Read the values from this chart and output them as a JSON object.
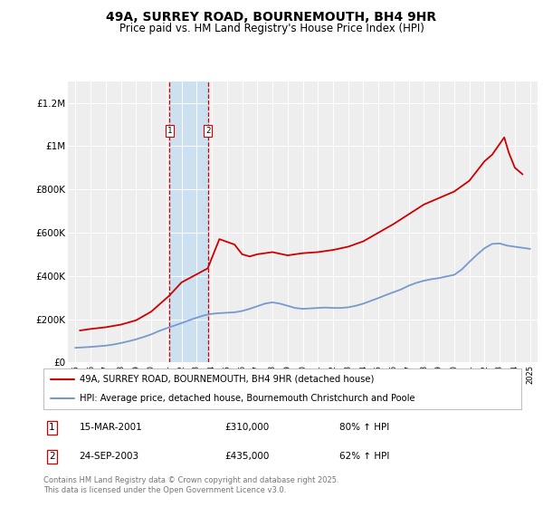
{
  "title": "49A, SURREY ROAD, BOURNEMOUTH, BH4 9HR",
  "subtitle": "Price paid vs. HM Land Registry's House Price Index (HPI)",
  "legend_line1": "49A, SURREY ROAD, BOURNEMOUTH, BH4 9HR (detached house)",
  "legend_line2": "HPI: Average price, detached house, Bournemouth Christchurch and Poole",
  "footer": "Contains HM Land Registry data © Crown copyright and database right 2025.\nThis data is licensed under the Open Government Licence v3.0.",
  "transaction1_date": "15-MAR-2001",
  "transaction1_price": "£310,000",
  "transaction1_hpi": "80% ↑ HPI",
  "transaction2_date": "24-SEP-2003",
  "transaction2_price": "£435,000",
  "transaction2_hpi": "62% ↑ HPI",
  "ylim": [
    0,
    1300000
  ],
  "yticks": [
    0,
    200000,
    400000,
    600000,
    800000,
    1000000,
    1200000
  ],
  "ytick_labels": [
    "£0",
    "£200K",
    "£400K",
    "£600K",
    "£800K",
    "£1M",
    "£1.2M"
  ],
  "background_color": "#ffffff",
  "plot_bg_color": "#eeeeee",
  "red_line_color": "#cc0000",
  "blue_line_color": "#7799cc",
  "shade_color": "#cce0f0",
  "vline_color": "#cc0000",
  "transaction1_x": 2001.21,
  "transaction2_x": 2003.73,
  "hpi_x": [
    1995,
    1995.5,
    1996,
    1996.5,
    1997,
    1997.5,
    1998,
    1998.5,
    1999,
    1999.5,
    2000,
    2000.5,
    2001,
    2001.5,
    2002,
    2002.5,
    2003,
    2003.5,
    2004,
    2004.5,
    2005,
    2005.5,
    2006,
    2006.5,
    2007,
    2007.5,
    2008,
    2008.5,
    2009,
    2009.5,
    2010,
    2010.5,
    2011,
    2011.5,
    2012,
    2012.5,
    2013,
    2013.5,
    2014,
    2014.5,
    2015,
    2015.5,
    2016,
    2016.5,
    2017,
    2017.5,
    2018,
    2018.5,
    2019,
    2019.5,
    2020,
    2020.5,
    2021,
    2021.5,
    2022,
    2022.5,
    2023,
    2023.5,
    2024,
    2024.5,
    2025
  ],
  "hpi_y": [
    68000,
    70000,
    72000,
    75000,
    78000,
    83000,
    90000,
    98000,
    107000,
    118000,
    130000,
    145000,
    158000,
    170000,
    182000,
    195000,
    207000,
    218000,
    225000,
    228000,
    230000,
    232000,
    238000,
    248000,
    260000,
    272000,
    278000,
    272000,
    262000,
    252000,
    248000,
    250000,
    252000,
    254000,
    252000,
    252000,
    255000,
    262000,
    272000,
    285000,
    298000,
    312000,
    325000,
    338000,
    355000,
    368000,
    378000,
    385000,
    390000,
    398000,
    405000,
    430000,
    465000,
    498000,
    528000,
    548000,
    550000,
    540000,
    535000,
    530000,
    525000
  ],
  "price_x": [
    1995.3,
    1996,
    1997,
    1998,
    1999,
    2000,
    2001.21,
    2002,
    2003.73,
    2004.5,
    2005.5,
    2006,
    2006.5,
    2007,
    2007.5,
    2008,
    2009,
    2010,
    2011,
    2012,
    2013,
    2014,
    2015,
    2016,
    2017,
    2018,
    2019,
    2020,
    2021,
    2022,
    2022.5,
    2023,
    2023.3,
    2023.6,
    2024,
    2024.5
  ],
  "price_y": [
    148000,
    155000,
    163000,
    175000,
    195000,
    235000,
    310000,
    370000,
    435000,
    570000,
    545000,
    500000,
    490000,
    500000,
    505000,
    510000,
    495000,
    505000,
    510000,
    520000,
    535000,
    560000,
    600000,
    640000,
    685000,
    730000,
    760000,
    790000,
    840000,
    930000,
    960000,
    1010000,
    1040000,
    970000,
    900000,
    870000
  ],
  "xlim": [
    1994.5,
    2025.5
  ]
}
